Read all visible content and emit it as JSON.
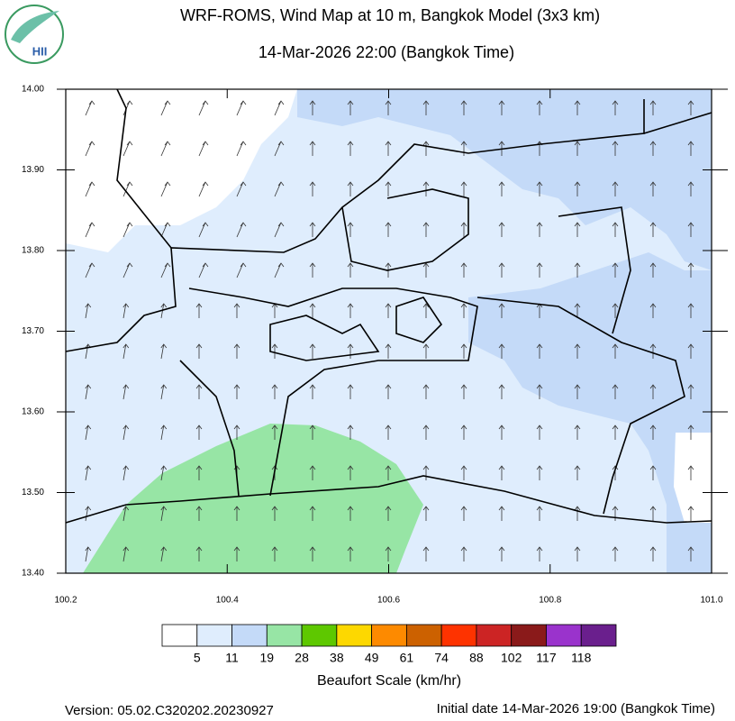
{
  "logo": {
    "text": "HII"
  },
  "chart_data": {
    "type": "map",
    "title": "WRF-ROMS, Wind Map at 10 m, Bangkok Model (3x3 km)",
    "subtitle": "14-Mar-2026 22:00 (Bangkok Time)",
    "xlim": [
      100.2,
      101.0
    ],
    "ylim": [
      13.4,
      14.0
    ],
    "xticks": [
      100.2,
      100.4,
      100.6,
      100.8,
      {
        "value": 101.0,
        "label": "101.0"
      }
    ],
    "yticks": [
      {
        "value": 13.4,
        "label": "13.40"
      },
      {
        "value": 13.5,
        "label": "13.50"
      },
      {
        "value": 13.6,
        "label": "13.60"
      },
      {
        "value": 13.7,
        "label": "13.70"
      },
      {
        "value": 13.8,
        "label": "13.80"
      },
      {
        "value": 13.9,
        "label": "13.90"
      },
      {
        "value": 14.0,
        "label": "14.00"
      }
    ],
    "colorbar": {
      "title": "Beaufort Scale (km/hr)",
      "labels": [
        5,
        11,
        19,
        28,
        38,
        49,
        61,
        74,
        88,
        102,
        117,
        118
      ],
      "colors": [
        "#ffffff",
        "#dfedfd",
        "#c4daf8",
        "#97e5a5",
        "#5ec800",
        "#fdd800",
        "#fd8a00",
        "#cc6100",
        "#fe3300",
        "#cc2424",
        "#8a1a1a",
        "#9a33cc",
        "#6a1f8d"
      ]
    }
  },
  "footer": {
    "version": "Version: 05.02.C320202.20230927",
    "initial": "Initial date 14-Mar-2026 19:00 (Bangkok Time)"
  }
}
